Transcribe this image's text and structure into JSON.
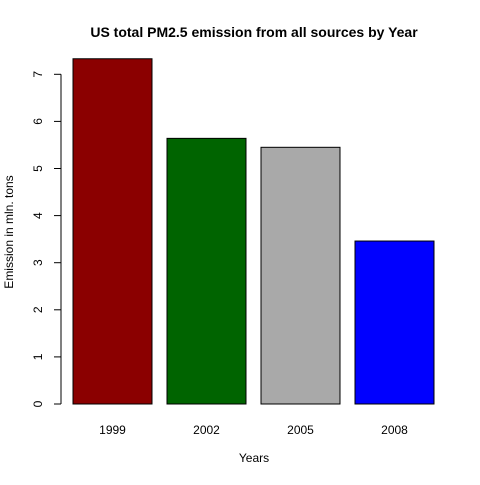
{
  "chart_data": {
    "type": "bar",
    "title": "US total PM2.5 emission from all sources by Year",
    "xlabel": "Years",
    "ylabel": "Emission in mln. tons",
    "categories": [
      "1999",
      "2002",
      "2005",
      "2008"
    ],
    "values": [
      7.33,
      5.64,
      5.45,
      3.46
    ],
    "colors": [
      "#8b0000",
      "#006400",
      "#a9a9a9",
      "#0000ff"
    ],
    "y_ticks": [
      0,
      1,
      2,
      3,
      4,
      5,
      6,
      7
    ],
    "ylim": [
      0,
      7.33
    ],
    "grid": false,
    "legend": "none"
  }
}
